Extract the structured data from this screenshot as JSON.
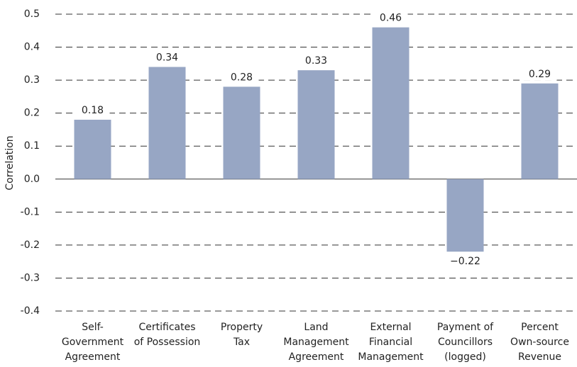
{
  "chart_data": {
    "type": "bar",
    "y_label": "Correlation",
    "categories": [
      [
        "Self-",
        "Government",
        "Agreement"
      ],
      [
        "Certificates",
        "of Possession"
      ],
      [
        "Property",
        "Tax"
      ],
      [
        "Land",
        "Management",
        "Agreement"
      ],
      [
        "External",
        "Financial",
        "Management"
      ],
      [
        "Payment of",
        "Councillors",
        "(logged)"
      ],
      [
        "Percent",
        "Own-source",
        "Revenue"
      ]
    ],
    "values": [
      0.18,
      0.34,
      0.28,
      0.33,
      0.46,
      -0.22,
      0.29
    ],
    "value_labels": [
      "0.18",
      "0.34",
      "0.28",
      "0.33",
      "0.46",
      "−0.22",
      "0.29"
    ],
    "color": "#97a6c4",
    "ylim": [
      -0.4,
      0.5
    ],
    "yticks": [
      -0.4,
      -0.3,
      -0.2,
      -0.1,
      {
        "value": 0,
        "label": "0.0"
      },
      0.1,
      0.2,
      0.3,
      0.4,
      0.5
    ],
    "grid": true
  }
}
